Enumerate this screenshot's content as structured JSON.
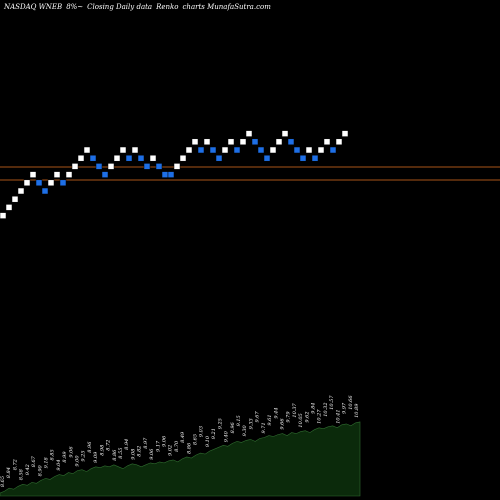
{
  "header": {
    "symbol": "NASDAQ WNEB",
    "change": "8%~",
    "chart_desc": "Closing Daily data",
    "chart_style": "Renko",
    "site": "charts MunafaSutra.com"
  },
  "colors": {
    "background": "#000000",
    "up_brick": "#ffffff",
    "down_brick": "#1e6fe6",
    "support_line": "#e07020",
    "volume_fill": "#0b2a0b",
    "volume_edge": "#2f6b2f"
  },
  "chart_data": [
    {
      "type": "renko",
      "bricks": [
        {
          "col": 0,
          "level": 2,
          "dir": "up"
        },
        {
          "col": 1,
          "level": 3,
          "dir": "up"
        },
        {
          "col": 2,
          "level": 4,
          "dir": "up"
        },
        {
          "col": 3,
          "level": 5,
          "dir": "up"
        },
        {
          "col": 4,
          "level": 6,
          "dir": "up"
        },
        {
          "col": 5,
          "level": 7,
          "dir": "up"
        },
        {
          "col": 6,
          "level": 6,
          "dir": "down"
        },
        {
          "col": 7,
          "level": 5,
          "dir": "down"
        },
        {
          "col": 8,
          "level": 6,
          "dir": "up"
        },
        {
          "col": 9,
          "level": 7,
          "dir": "up"
        },
        {
          "col": 10,
          "level": 6,
          "dir": "down"
        },
        {
          "col": 11,
          "level": 7,
          "dir": "up"
        },
        {
          "col": 12,
          "level": 8,
          "dir": "up"
        },
        {
          "col": 13,
          "level": 9,
          "dir": "up"
        },
        {
          "col": 14,
          "level": 10,
          "dir": "up"
        },
        {
          "col": 15,
          "level": 9,
          "dir": "down"
        },
        {
          "col": 16,
          "level": 8,
          "dir": "down"
        },
        {
          "col": 17,
          "level": 7,
          "dir": "down"
        },
        {
          "col": 18,
          "level": 8,
          "dir": "up"
        },
        {
          "col": 19,
          "level": 9,
          "dir": "up"
        },
        {
          "col": 20,
          "level": 10,
          "dir": "up"
        },
        {
          "col": 21,
          "level": 9,
          "dir": "down"
        },
        {
          "col": 22,
          "level": 10,
          "dir": "up"
        },
        {
          "col": 23,
          "level": 9,
          "dir": "down"
        },
        {
          "col": 24,
          "level": 8,
          "dir": "down"
        },
        {
          "col": 25,
          "level": 9,
          "dir": "up"
        },
        {
          "col": 26,
          "level": 8,
          "dir": "down"
        },
        {
          "col": 27,
          "level": 7,
          "dir": "down"
        },
        {
          "col": 28,
          "level": 7,
          "dir": "down"
        },
        {
          "col": 29,
          "level": 8,
          "dir": "up"
        },
        {
          "col": 30,
          "level": 9,
          "dir": "up"
        },
        {
          "col": 31,
          "level": 10,
          "dir": "up"
        },
        {
          "col": 32,
          "level": 11,
          "dir": "up"
        },
        {
          "col": 33,
          "level": 10,
          "dir": "down"
        },
        {
          "col": 34,
          "level": 11,
          "dir": "up"
        },
        {
          "col": 35,
          "level": 10,
          "dir": "down"
        },
        {
          "col": 36,
          "level": 9,
          "dir": "down"
        },
        {
          "col": 37,
          "level": 10,
          "dir": "up"
        },
        {
          "col": 38,
          "level": 11,
          "dir": "up"
        },
        {
          "col": 39,
          "level": 10,
          "dir": "down"
        },
        {
          "col": 40,
          "level": 11,
          "dir": "up"
        },
        {
          "col": 41,
          "level": 12,
          "dir": "up"
        },
        {
          "col": 42,
          "level": 11,
          "dir": "down"
        },
        {
          "col": 43,
          "level": 10,
          "dir": "down"
        },
        {
          "col": 44,
          "level": 9,
          "dir": "down"
        },
        {
          "col": 45,
          "level": 10,
          "dir": "up"
        },
        {
          "col": 46,
          "level": 11,
          "dir": "up"
        },
        {
          "col": 47,
          "level": 12,
          "dir": "up"
        },
        {
          "col": 48,
          "level": 11,
          "dir": "down"
        },
        {
          "col": 49,
          "level": 10,
          "dir": "down"
        },
        {
          "col": 50,
          "level": 9,
          "dir": "down"
        },
        {
          "col": 51,
          "level": 10,
          "dir": "up"
        },
        {
          "col": 52,
          "level": 9,
          "dir": "down"
        },
        {
          "col": 53,
          "level": 10,
          "dir": "up"
        },
        {
          "col": 54,
          "level": 11,
          "dir": "up"
        },
        {
          "col": 55,
          "level": 10,
          "dir": "down"
        },
        {
          "col": 56,
          "level": 11,
          "dir": "up"
        },
        {
          "col": 57,
          "level": 12,
          "dir": "up"
        }
      ],
      "support_levels": [
        9.35,
        7.6
      ]
    },
    {
      "type": "area",
      "series": [
        {
          "values": [
            3,
            5,
            8,
            7,
            10,
            12,
            11,
            14,
            13,
            16,
            18,
            17,
            20,
            22,
            21,
            24,
            23,
            26,
            27,
            25,
            28,
            30,
            29,
            31,
            30,
            32,
            30,
            28,
            31,
            33,
            32,
            30,
            32,
            34,
            33,
            35,
            34,
            36,
            37,
            35,
            38,
            40,
            39,
            42,
            44,
            43,
            46,
            48,
            50,
            52,
            51,
            54,
            56,
            55,
            57,
            58,
            56,
            59,
            60,
            62,
            61,
            63,
            64,
            62,
            65,
            64,
            66,
            67,
            65,
            68,
            70,
            69,
            71,
            72,
            70,
            73,
            74,
            72,
            75,
            76
          ]
        }
      ],
      "value_labels": [
        "8.65",
        "8.84",
        "8.72",
        "8.58",
        "9.42",
        "8.67",
        "8.90",
        "9.18",
        "8.85",
        "9.04",
        "8.99",
        "9.06",
        "9.00",
        "9.25",
        "8.96",
        "9.09",
        "8.98",
        "8.72",
        "8.86",
        "8.55",
        "8.94",
        "9.08",
        "8.82",
        "8.97",
        "9.06",
        "9.17",
        "9.06",
        "9.02",
        "8.70",
        "8.49",
        "8.86",
        "8.65",
        "9.03",
        "9.10",
        "9.21",
        "9.25",
        "9.40",
        "8.96",
        "9.15",
        "9.30",
        "9.33",
        "9.67",
        "9.71",
        "9.61",
        "9.44",
        "9.66",
        "9.79",
        "10.37",
        "10.05",
        "9.62",
        "9.84",
        "10.27",
        "10.32",
        "10.57",
        "10.41",
        "9.97",
        "10.66",
        "10.89"
      ]
    }
  ]
}
